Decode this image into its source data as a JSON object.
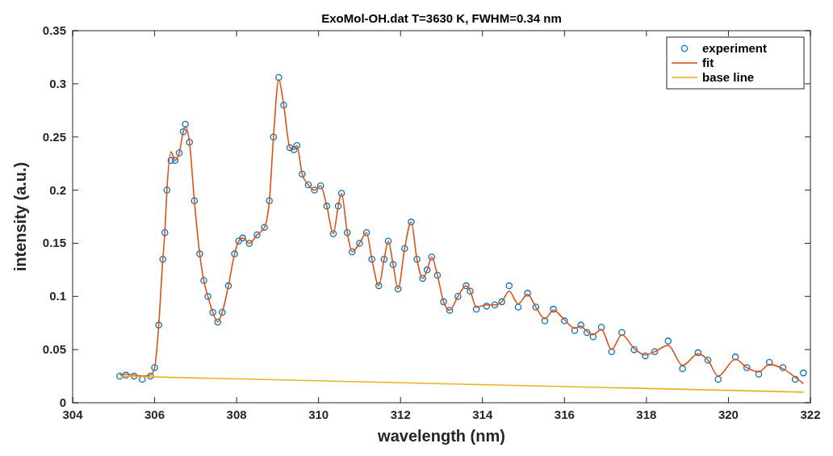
{
  "chart_data": {
    "type": "line",
    "title": "ExoMol-OH.dat T=3630 K, FWHM=0.34 nm",
    "xlabel": "wavelength (nm)",
    "ylabel": "intensity (a.u.)",
    "xlim": [
      304,
      322
    ],
    "xticks": [
      304,
      306,
      308,
      310,
      312,
      314,
      316,
      318,
      320,
      322
    ],
    "ylim": [
      0,
      0.35
    ],
    "yticks": [
      0,
      0.05,
      0.1,
      0.15,
      0.2,
      0.25,
      0.3,
      0.35
    ],
    "grid": false,
    "legend": "top right",
    "series": [
      {
        "name": "experiment",
        "type": "scatter",
        "marker": "circle",
        "color": "#0072bd",
        "x": [
          305.15,
          305.3,
          305.5,
          305.7,
          305.9,
          306.0,
          306.1,
          306.2,
          306.25,
          306.3,
          306.4,
          306.5,
          306.6,
          306.7,
          306.75,
          306.85,
          306.97,
          307.1,
          307.2,
          307.3,
          307.42,
          307.54,
          307.65,
          307.8,
          307.95,
          308.05,
          308.15,
          308.31,
          308.5,
          308.68,
          308.8,
          308.9,
          309.03,
          309.15,
          309.3,
          309.4,
          309.47,
          309.6,
          309.75,
          309.9,
          310.05,
          310.2,
          310.36,
          310.48,
          310.56,
          310.7,
          310.82,
          311.0,
          311.17,
          311.3,
          311.47,
          311.6,
          311.7,
          311.82,
          311.94,
          312.1,
          312.26,
          312.4,
          312.54,
          312.65,
          312.76,
          312.9,
          313.05,
          313.2,
          313.4,
          313.6,
          313.7,
          313.85,
          314.1,
          314.3,
          314.47,
          314.65,
          314.87,
          315.1,
          315.3,
          315.52,
          315.73,
          316.0,
          316.25,
          316.4,
          316.55,
          316.7,
          316.9,
          317.15,
          317.4,
          317.7,
          317.97,
          318.2,
          318.53,
          318.88,
          319.26,
          319.5,
          319.75,
          320.17,
          320.45,
          320.74,
          321.0,
          321.33,
          321.63,
          321.83
        ],
        "values": [
          0.025,
          0.026,
          0.025,
          0.022,
          0.025,
          0.033,
          0.073,
          0.135,
          0.16,
          0.2,
          0.228,
          0.228,
          0.235,
          0.255,
          0.262,
          0.245,
          0.19,
          0.14,
          0.115,
          0.1,
          0.085,
          0.076,
          0.085,
          0.11,
          0.14,
          0.152,
          0.155,
          0.15,
          0.158,
          0.165,
          0.19,
          0.25,
          0.306,
          0.28,
          0.24,
          0.238,
          0.242,
          0.215,
          0.205,
          0.2,
          0.204,
          0.185,
          0.159,
          0.185,
          0.197,
          0.16,
          0.142,
          0.15,
          0.16,
          0.135,
          0.11,
          0.135,
          0.152,
          0.13,
          0.107,
          0.145,
          0.17,
          0.135,
          0.117,
          0.125,
          0.137,
          0.12,
          0.095,
          0.087,
          0.1,
          0.11,
          0.105,
          0.088,
          0.091,
          0.092,
          0.095,
          0.11,
          0.09,
          0.103,
          0.09,
          0.077,
          0.088,
          0.077,
          0.068,
          0.073,
          0.066,
          0.062,
          0.071,
          0.048,
          0.066,
          0.05,
          0.044,
          0.048,
          0.058,
          0.032,
          0.047,
          0.04,
          0.022,
          0.043,
          0.033,
          0.027,
          0.038,
          0.033,
          0.022,
          0.028
        ]
      },
      {
        "name": "fit",
        "color": "#d95319",
        "x": [
          305.15,
          305.3,
          305.5,
          305.7,
          305.9,
          306.0,
          306.1,
          306.2,
          306.25,
          306.3,
          306.4,
          306.5,
          306.6,
          306.7,
          306.75,
          306.85,
          306.97,
          307.1,
          307.2,
          307.3,
          307.42,
          307.54,
          307.65,
          307.8,
          307.95,
          308.05,
          308.15,
          308.31,
          308.5,
          308.68,
          308.8,
          308.9,
          309.03,
          309.15,
          309.3,
          309.4,
          309.47,
          309.6,
          309.75,
          309.9,
          310.05,
          310.2,
          310.36,
          310.48,
          310.56,
          310.7,
          310.82,
          311.0,
          311.17,
          311.3,
          311.47,
          311.6,
          311.7,
          311.82,
          311.94,
          312.1,
          312.26,
          312.4,
          312.54,
          312.65,
          312.76,
          312.9,
          313.05,
          313.2,
          313.4,
          313.6,
          313.7,
          313.85,
          314.1,
          314.3,
          314.47,
          314.65,
          314.87,
          315.1,
          315.3,
          315.52,
          315.73,
          316.0,
          316.25,
          316.4,
          316.55,
          316.7,
          316.9,
          317.15,
          317.4,
          317.7,
          317.97,
          318.2,
          318.53,
          318.88,
          319.26,
          319.5,
          319.75,
          320.17,
          320.45,
          320.74,
          321.0,
          321.33,
          321.63,
          321.83
        ],
        "values": [
          0.026,
          0.027,
          0.026,
          0.025,
          0.026,
          0.033,
          0.073,
          0.135,
          0.16,
          0.2,
          0.236,
          0.228,
          0.235,
          0.255,
          0.26,
          0.245,
          0.19,
          0.14,
          0.115,
          0.1,
          0.085,
          0.076,
          0.085,
          0.11,
          0.14,
          0.152,
          0.155,
          0.15,
          0.158,
          0.165,
          0.19,
          0.25,
          0.304,
          0.28,
          0.24,
          0.238,
          0.242,
          0.215,
          0.205,
          0.2,
          0.204,
          0.185,
          0.159,
          0.185,
          0.197,
          0.16,
          0.142,
          0.15,
          0.16,
          0.135,
          0.11,
          0.135,
          0.152,
          0.13,
          0.107,
          0.145,
          0.17,
          0.135,
          0.117,
          0.125,
          0.137,
          0.12,
          0.095,
          0.087,
          0.1,
          0.11,
          0.105,
          0.09,
          0.092,
          0.092,
          0.095,
          0.105,
          0.093,
          0.102,
          0.09,
          0.079,
          0.087,
          0.078,
          0.07,
          0.072,
          0.067,
          0.064,
          0.069,
          0.05,
          0.064,
          0.051,
          0.045,
          0.048,
          0.054,
          0.035,
          0.046,
          0.04,
          0.025,
          0.041,
          0.033,
          0.029,
          0.036,
          0.032,
          0.024,
          0.018
        ]
      },
      {
        "name": "base line",
        "color": "#edb120",
        "x": [
          305.15,
          321.83
        ],
        "values": [
          0.025,
          0.01
        ]
      }
    ]
  }
}
